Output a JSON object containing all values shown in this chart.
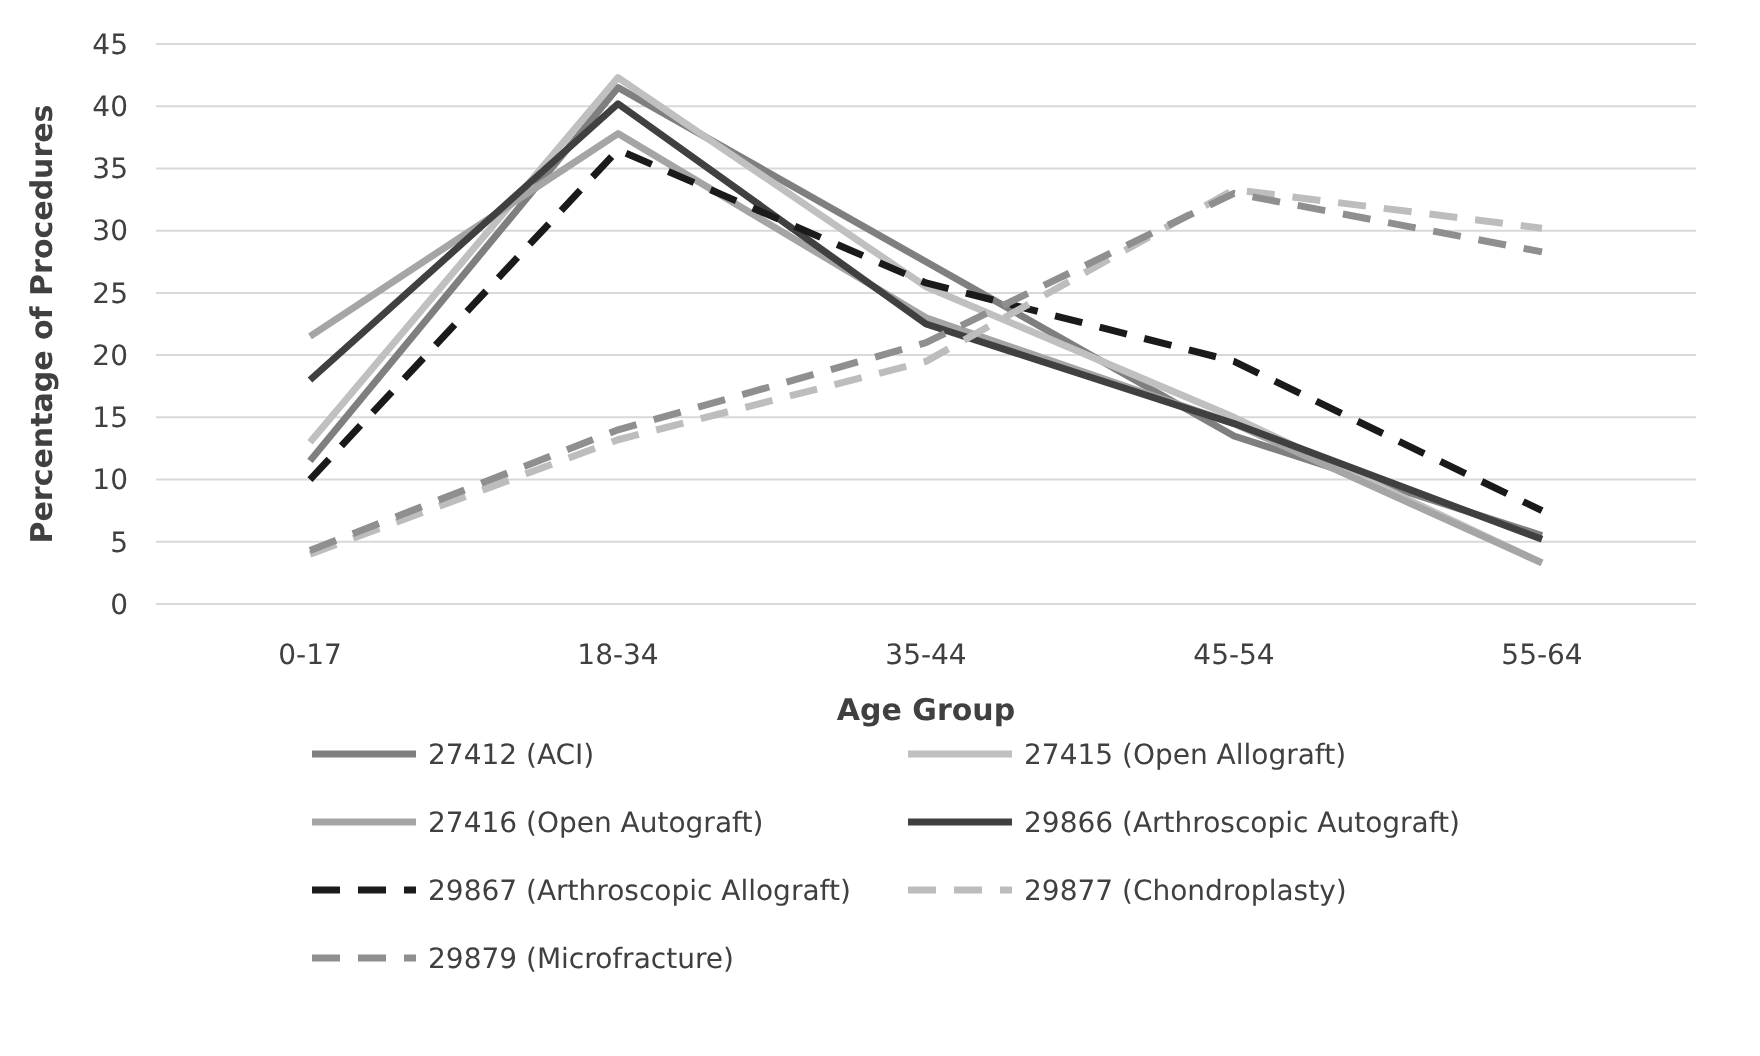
{
  "chart_data": {
    "type": "line",
    "xlabel": "Age Group",
    "ylabel": "Percentage of Procedures",
    "categories": [
      "0-17",
      "18-34",
      "35-44",
      "45-54",
      "55-64"
    ],
    "series": [
      {
        "name": "27412 (ACI)",
        "color": "#7f7f7f",
        "values": [
          11.5,
          41.5,
          27.5,
          13.5,
          5.5
        ]
      },
      {
        "name": "27415 (Open Allograft)",
        "color": "#c0c0c0",
        "values": [
          13,
          42.3,
          25.5,
          15,
          3.3
        ]
      },
      {
        "name": "27416 (Open Autograft)",
        "color": "#a5a5a5",
        "values": [
          21.5,
          37.8,
          23,
          14.5,
          3.3
        ]
      },
      {
        "name": "29866 (Arthroscopic Autograft)",
        "color": "#404040",
        "values": [
          18,
          40.2,
          22.5,
          14.5,
          5.2
        ]
      },
      {
        "name": "29867 (Arthroscopic Allograft)",
        "color": "#1a1a1a",
        "values": [
          10,
          36.5,
          25.8,
          19.5,
          7.5
        ],
        "line_style": "dashed"
      },
      {
        "name": "29877 (Chondroplasty)",
        "color": "#bdbdbd",
        "values": [
          4,
          13.2,
          19.5,
          33.3,
          30.2
        ],
        "line_style": "dashed"
      },
      {
        "name": "29879 (Microfracture)",
        "color": "#8f8f8f",
        "values": [
          4.3,
          14,
          21,
          33,
          28.3
        ],
        "line_style": "dashed"
      }
    ],
    "ylim": [
      0,
      45
    ],
    "yticks": [
      0,
      5,
      10,
      15,
      20,
      25,
      30,
      35,
      40,
      45
    ],
    "grid": "y",
    "legend": "bottom",
    "line_style": "solid"
  }
}
